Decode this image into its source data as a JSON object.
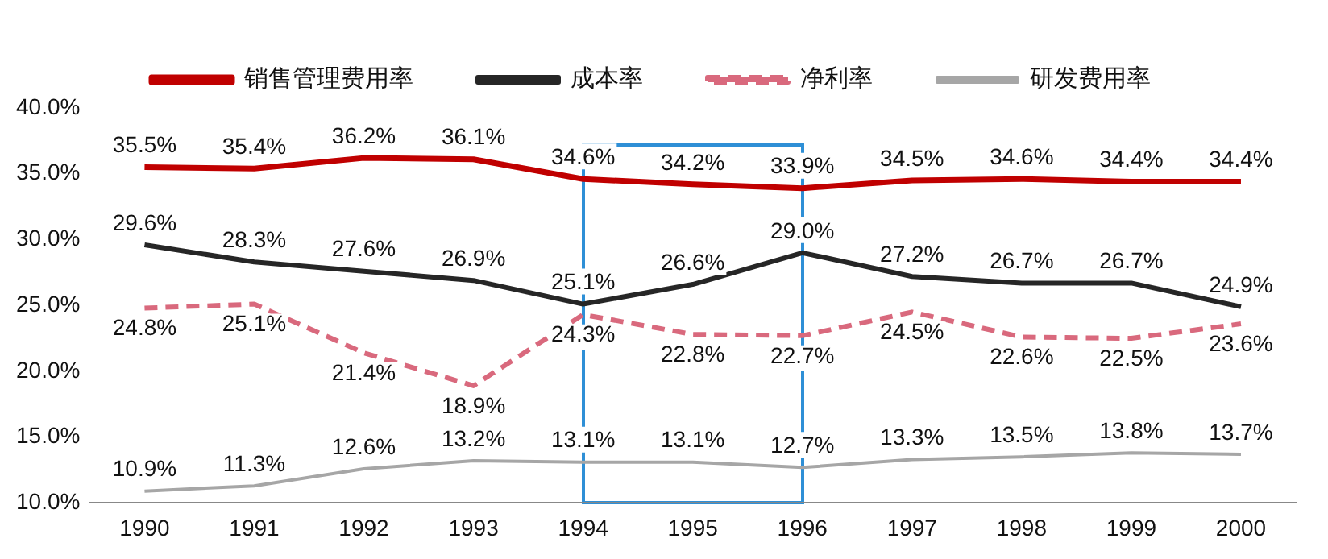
{
  "chart_data": {
    "type": "line",
    "categories": [
      "1990",
      "1991",
      "1992",
      "1993",
      "1994",
      "1995",
      "1996",
      "1997",
      "1998",
      "1999",
      "2000"
    ],
    "ylim": [
      10,
      40
    ],
    "yticks": [
      {
        "value": 10,
        "label": "10.0%"
      },
      {
        "value": 15,
        "label": "15.0%"
      },
      {
        "value": 20,
        "label": "20.0%"
      },
      {
        "value": 25,
        "label": "25.0%"
      },
      {
        "value": 30,
        "label": "30.0%"
      },
      {
        "value": 35,
        "label": "35.0%"
      },
      {
        "value": 40,
        "label": "40.0%"
      }
    ],
    "grid": false,
    "legend": "top",
    "marker": "none",
    "series": [
      {
        "name": "销售管理费用率",
        "color": "#c00000",
        "line_style": "solid",
        "values": [
          35.5,
          35.4,
          36.2,
          36.1,
          34.6,
          34.2,
          33.9,
          34.5,
          34.6,
          34.4,
          34.4
        ],
        "value_labels": [
          "35.5%",
          "35.4%",
          "36.2%",
          "36.1%",
          "34.6%",
          "34.2%",
          "33.9%",
          "34.5%",
          "34.6%",
          "34.4%",
          "34.4%"
        ]
      },
      {
        "name": "成本率",
        "color": "#262626",
        "line_style": "solid",
        "values": [
          29.6,
          28.3,
          27.6,
          26.9,
          25.1,
          26.6,
          29.0,
          27.2,
          26.7,
          26.7,
          24.9
        ],
        "value_labels": [
          "29.6%",
          "28.3%",
          "27.6%",
          "26.9%",
          "25.1%",
          "26.6%",
          "29.0%",
          "27.2%",
          "26.7%",
          "26.7%",
          "24.9%"
        ]
      },
      {
        "name": "净利率",
        "color": "#d9697d",
        "line_style": "dashed",
        "values": [
          24.8,
          25.1,
          21.4,
          18.9,
          24.3,
          22.8,
          22.7,
          24.5,
          22.6,
          22.5,
          23.6
        ],
        "value_labels": [
          "24.8%",
          "25.1%",
          "21.4%",
          "18.9%",
          "24.3%",
          "22.8%",
          "22.7%",
          "24.5%",
          "22.6%",
          "22.5%",
          "23.6%"
        ]
      },
      {
        "name": "研发费用率",
        "color": "#a6a6a6",
        "line_style": "solid",
        "values": [
          10.9,
          11.3,
          12.6,
          13.2,
          13.1,
          13.1,
          12.7,
          13.3,
          13.5,
          13.8,
          13.7
        ],
        "value_labels": [
          "10.9%",
          "11.3%",
          "12.6%",
          "13.2%",
          "13.1%",
          "13.1%",
          "12.7%",
          "13.3%",
          "13.5%",
          "13.8%",
          "13.7%"
        ]
      }
    ]
  }
}
